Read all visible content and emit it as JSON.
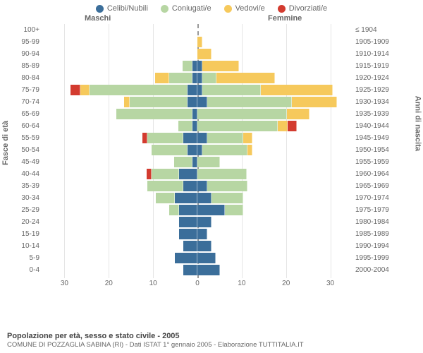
{
  "legend": [
    {
      "label": "Celibi/Nubili",
      "color": "#3b6e9a"
    },
    {
      "label": "Coniugati/e",
      "color": "#b7d6a3"
    },
    {
      "label": "Vedovi/e",
      "color": "#f6c95c"
    },
    {
      "label": "Divorziati/e",
      "color": "#d33b2f"
    }
  ],
  "headers": {
    "male": "Maschi",
    "female": "Femmine"
  },
  "y_title_left": "Fasce di età",
  "y_title_right": "Anni di nascita",
  "footer": {
    "line1": "Popolazione per età, sesso e stato civile - 2005",
    "line2": "COMUNE DI POZZAGLIA SABINA (RI) - Dati ISTAT 1° gennaio 2005 - Elaborazione TUTTITALIA.IT"
  },
  "scale": {
    "max": 35,
    "ticks": [
      30,
      20,
      10,
      0,
      10,
      20,
      30
    ]
  },
  "colors": {
    "single": "#3b6e9a",
    "married": "#b7d6a3",
    "widow": "#f6c95c",
    "div": "#d33b2f",
    "grid": "#e5e5e5"
  },
  "rows": [
    {
      "age": "100+",
      "birth": "≤ 1904",
      "m": [
        0,
        0,
        0,
        0
      ],
      "f": [
        0,
        0,
        0,
        0
      ]
    },
    {
      "age": "95-99",
      "birth": "1905-1909",
      "m": [
        0,
        0,
        0,
        0
      ],
      "f": [
        0,
        0,
        1,
        0
      ]
    },
    {
      "age": "90-94",
      "birth": "1910-1914",
      "m": [
        0,
        0,
        0,
        0
      ],
      "f": [
        0,
        0,
        3,
        0
      ]
    },
    {
      "age": "85-89",
      "birth": "1915-1919",
      "m": [
        1,
        2,
        0,
        0
      ],
      "f": [
        1,
        0,
        8,
        0
      ]
    },
    {
      "age": "80-84",
      "birth": "1920-1924",
      "m": [
        1,
        5,
        3,
        0
      ],
      "f": [
        1,
        3,
        13,
        0
      ]
    },
    {
      "age": "75-79",
      "birth": "1925-1929",
      "m": [
        2,
        22,
        2,
        2
      ],
      "f": [
        1,
        13,
        16,
        0
      ]
    },
    {
      "age": "70-74",
      "birth": "1930-1934",
      "m": [
        2,
        13,
        1,
        0
      ],
      "f": [
        2,
        19,
        10,
        0
      ]
    },
    {
      "age": "65-69",
      "birth": "1935-1939",
      "m": [
        1,
        17,
        0,
        0
      ],
      "f": [
        0,
        20,
        5,
        0
      ]
    },
    {
      "age": "60-64",
      "birth": "1940-1944",
      "m": [
        1,
        3,
        0,
        0
      ],
      "f": [
        0,
        18,
        2,
        2
      ]
    },
    {
      "age": "55-59",
      "birth": "1945-1949",
      "m": [
        3,
        8,
        0,
        1
      ],
      "f": [
        2,
        8,
        2,
        0
      ]
    },
    {
      "age": "50-54",
      "birth": "1950-1954",
      "m": [
        2,
        8,
        0,
        0
      ],
      "f": [
        1,
        10,
        1,
        0
      ]
    },
    {
      "age": "45-49",
      "birth": "1955-1959",
      "m": [
        1,
        4,
        0,
        0
      ],
      "f": [
        0,
        5,
        0,
        0
      ]
    },
    {
      "age": "40-44",
      "birth": "1960-1964",
      "m": [
        4,
        6,
        0,
        1
      ],
      "f": [
        0,
        11,
        0,
        0
      ]
    },
    {
      "age": "35-39",
      "birth": "1965-1969",
      "m": [
        3,
        8,
        0,
        0
      ],
      "f": [
        2,
        9,
        0,
        0
      ]
    },
    {
      "age": "30-34",
      "birth": "1970-1974",
      "m": [
        5,
        4,
        0,
        0
      ],
      "f": [
        3,
        7,
        0,
        0
      ]
    },
    {
      "age": "25-29",
      "birth": "1975-1979",
      "m": [
        4,
        2,
        0,
        0
      ],
      "f": [
        6,
        4,
        0,
        0
      ]
    },
    {
      "age": "20-24",
      "birth": "1980-1984",
      "m": [
        4,
        0,
        0,
        0
      ],
      "f": [
        3,
        0,
        0,
        0
      ]
    },
    {
      "age": "15-19",
      "birth": "1985-1989",
      "m": [
        4,
        0,
        0,
        0
      ],
      "f": [
        2,
        0,
        0,
        0
      ]
    },
    {
      "age": "10-14",
      "birth": "1990-1994",
      "m": [
        3,
        0,
        0,
        0
      ],
      "f": [
        3,
        0,
        0,
        0
      ]
    },
    {
      "age": "5-9",
      "birth": "1995-1999",
      "m": [
        5,
        0,
        0,
        0
      ],
      "f": [
        4,
        0,
        0,
        0
      ]
    },
    {
      "age": "0-4",
      "birth": "2000-2004",
      "m": [
        3,
        0,
        0,
        0
      ],
      "f": [
        5,
        0,
        0,
        0
      ]
    }
  ]
}
